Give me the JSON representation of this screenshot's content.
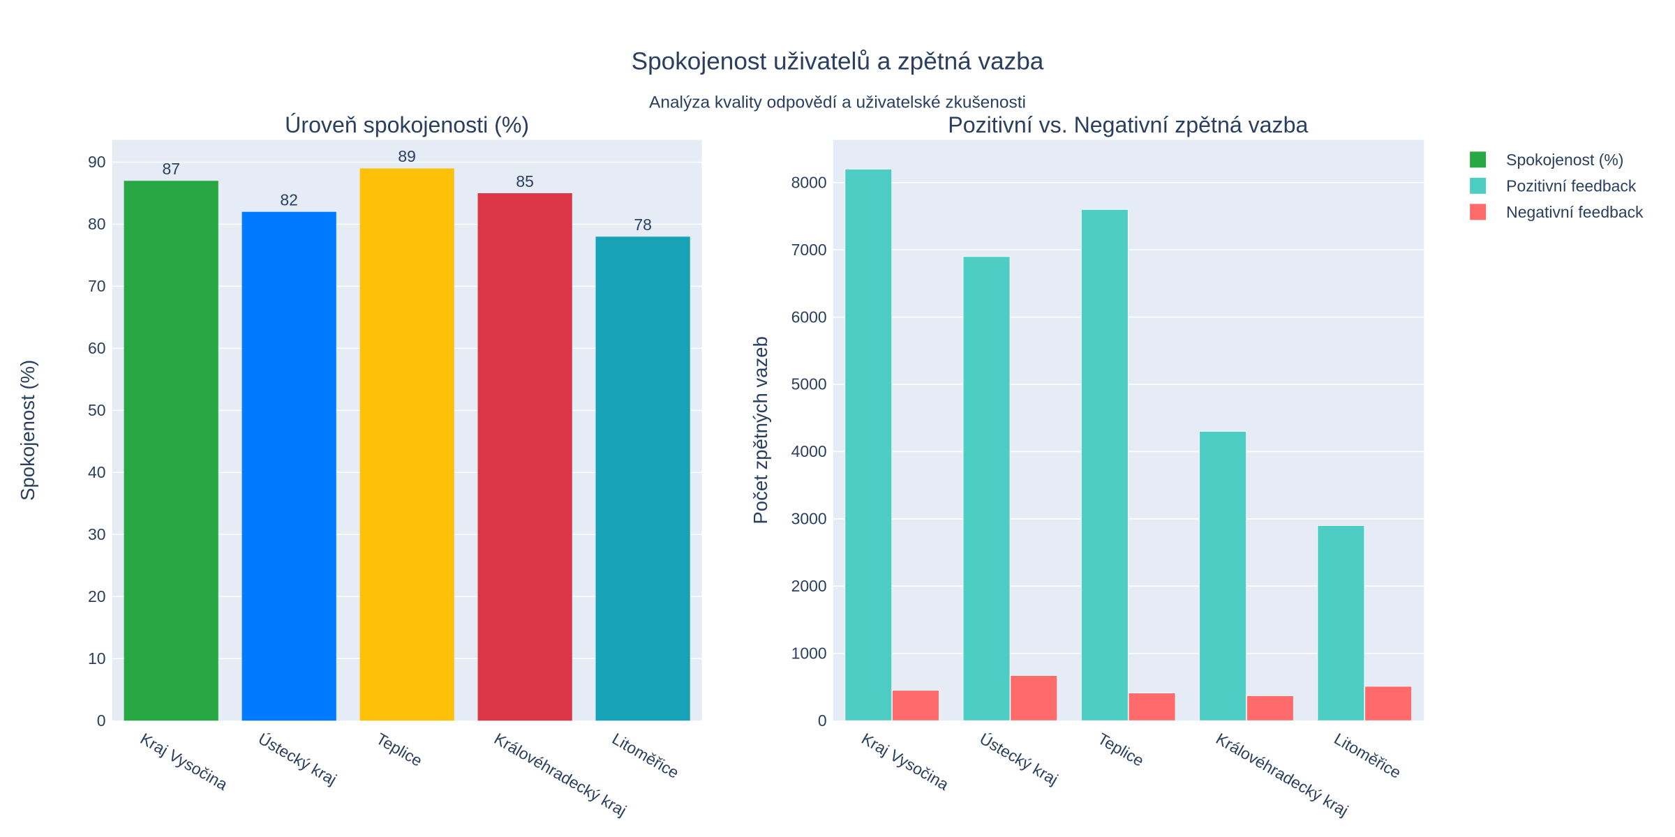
{
  "title": "Spokojenost uživatelů a zpětná vazba",
  "subtitle": "Analýza kvality odpovědí a uživatelské zkušenosti",
  "legend": [
    {
      "label": "Spokojenost (%)",
      "color": "#28a745"
    },
    {
      "label": "Pozitivní feedback",
      "color": "#4ecdc4"
    },
    {
      "label": "Negativní feedback",
      "color": "#ff6b6b"
    }
  ],
  "chart_data": [
    {
      "type": "bar",
      "title": "Úroveň spokojenosti (%)",
      "xlabel": "",
      "ylabel": "Spokojenost (%)",
      "categories": [
        "Kraj Vysočina",
        "Ústecký kraj",
        "Teplice",
        "Královéhradecký kraj",
        "Litoměřice"
      ],
      "values": [
        87,
        82,
        89,
        85,
        78
      ],
      "colors": [
        "#28a745",
        "#007bff",
        "#ffc107",
        "#dc3545",
        "#17a2b8"
      ],
      "data_labels": [
        "87",
        "82",
        "89",
        "85",
        "78"
      ],
      "ylim": [
        0,
        93.6
      ],
      "yticks": [
        0,
        10,
        20,
        30,
        40,
        50,
        60,
        70,
        80,
        90
      ],
      "grid": true
    },
    {
      "type": "bar",
      "title": "Pozitivní vs. Negativní zpětná vazba",
      "xlabel": "",
      "ylabel": "Počet zpětných vazeb",
      "categories": [
        "Kraj Vysočina",
        "Ústecký kraj",
        "Teplice",
        "Královéhradecký kraj",
        "Litoměřice"
      ],
      "series": [
        {
          "name": "Pozitivní feedback",
          "values": [
            8200,
            6900,
            7600,
            4300,
            2900
          ],
          "color": "#4ecdc4"
        },
        {
          "name": "Negativní feedback",
          "values": [
            450,
            670,
            410,
            370,
            510
          ],
          "color": "#ff6b6b"
        }
      ],
      "ylim": [
        0,
        8635
      ],
      "yticks": [
        0,
        1000,
        2000,
        3000,
        4000,
        5000,
        6000,
        7000,
        8000
      ],
      "grid": true,
      "legend_position": "top-right"
    }
  ]
}
